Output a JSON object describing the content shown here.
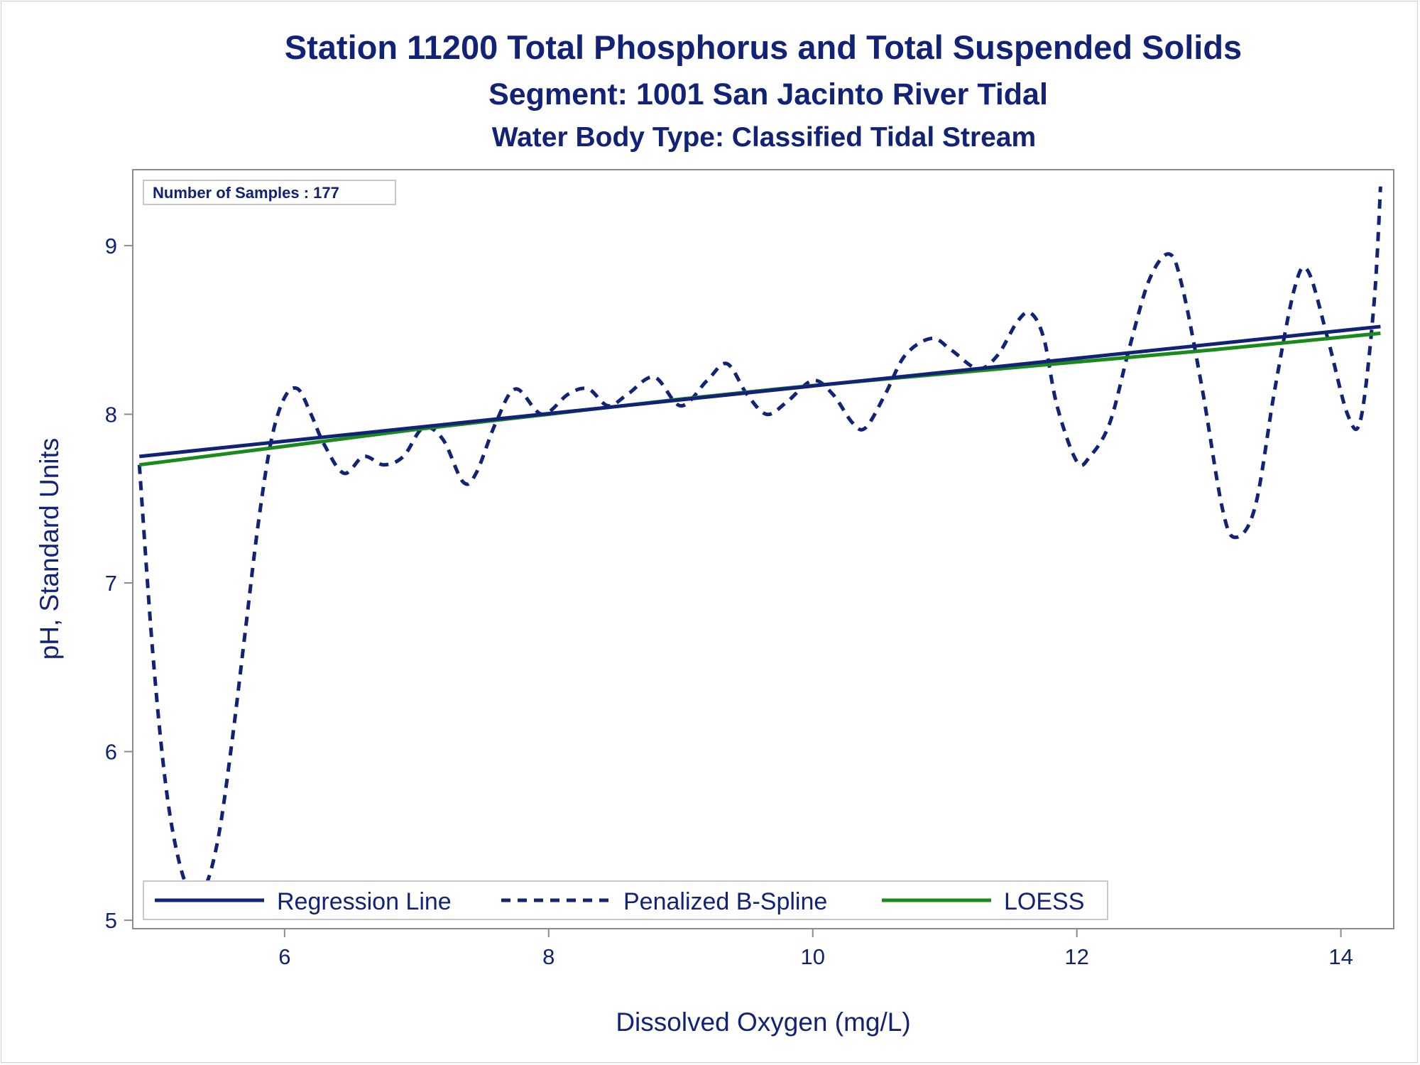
{
  "chart_data": {
    "type": "line",
    "title": "Station 11200  Total Phosphorus and Total Suspended Solids",
    "subtitle": "Segment: 1001  San Jacinto River Tidal",
    "subtitle2": "Water Body Type: Classified Tidal Stream",
    "xlabel": "Dissolved Oxygen (mg/L)",
    "ylabel": "pH, Standard Units",
    "xlim": [
      4.85,
      14.4
    ],
    "ylim": [
      4.95,
      9.45
    ],
    "x_ticks": [
      6,
      8,
      10,
      12,
      14
    ],
    "y_ticks": [
      5,
      6,
      7,
      8,
      9
    ],
    "grid": false,
    "legend_position": "bottom-left",
    "annotation": "Number of Samples : 177",
    "series": [
      {
        "name": "Regression Line",
        "style": "solid",
        "color": "#112277",
        "x": [
          4.9,
          14.3
        ],
        "y": [
          7.75,
          8.52
        ]
      },
      {
        "name": "Penalized B-Spline",
        "style": "dashed",
        "color": "#112277",
        "x": [
          4.9,
          5.0,
          5.1,
          5.2,
          5.3,
          5.4,
          5.5,
          5.6,
          5.7,
          5.8,
          5.9,
          6.0,
          6.1,
          6.2,
          6.3,
          6.45,
          6.6,
          6.75,
          6.9,
          7.05,
          7.2,
          7.35,
          7.45,
          7.6,
          7.75,
          7.95,
          8.15,
          8.3,
          8.45,
          8.6,
          8.8,
          9.0,
          9.2,
          9.35,
          9.5,
          9.65,
          9.8,
          10.0,
          10.15,
          10.3,
          10.4,
          10.55,
          10.7,
          10.9,
          11.05,
          11.25,
          11.4,
          11.55,
          11.65,
          11.75,
          11.85,
          12.0,
          12.1,
          12.25,
          12.4,
          12.55,
          12.7,
          12.8,
          12.95,
          13.1,
          13.2,
          13.35,
          13.5,
          13.65,
          13.75,
          13.9,
          14.05,
          14.15,
          14.25,
          14.3
        ],
        "y": [
          7.7,
          6.6,
          5.8,
          5.35,
          5.15,
          5.2,
          5.5,
          6.05,
          6.7,
          7.35,
          7.85,
          8.1,
          8.15,
          8.0,
          7.82,
          7.65,
          7.75,
          7.7,
          7.75,
          7.92,
          7.85,
          7.6,
          7.65,
          7.95,
          8.15,
          8.0,
          8.12,
          8.15,
          8.05,
          8.12,
          8.22,
          8.05,
          8.2,
          8.3,
          8.12,
          8.0,
          8.07,
          8.2,
          8.12,
          7.95,
          7.92,
          8.12,
          8.35,
          8.45,
          8.38,
          8.27,
          8.35,
          8.55,
          8.6,
          8.45,
          8.05,
          7.72,
          7.75,
          7.95,
          8.4,
          8.8,
          8.95,
          8.75,
          8.15,
          7.45,
          7.27,
          7.45,
          8.15,
          8.75,
          8.85,
          8.45,
          8.0,
          7.97,
          8.65,
          9.35
        ]
      },
      {
        "name": "LOESS",
        "style": "solid",
        "color": "#1a8a1a",
        "x": [
          4.9,
          6.0,
          7.0,
          8.0,
          9.0,
          10.0,
          11.0,
          12.0,
          13.0,
          14.3
        ],
        "y": [
          7.7,
          7.81,
          7.91,
          8.0,
          8.09,
          8.17,
          8.24,
          8.31,
          8.38,
          8.48
        ]
      }
    ]
  }
}
